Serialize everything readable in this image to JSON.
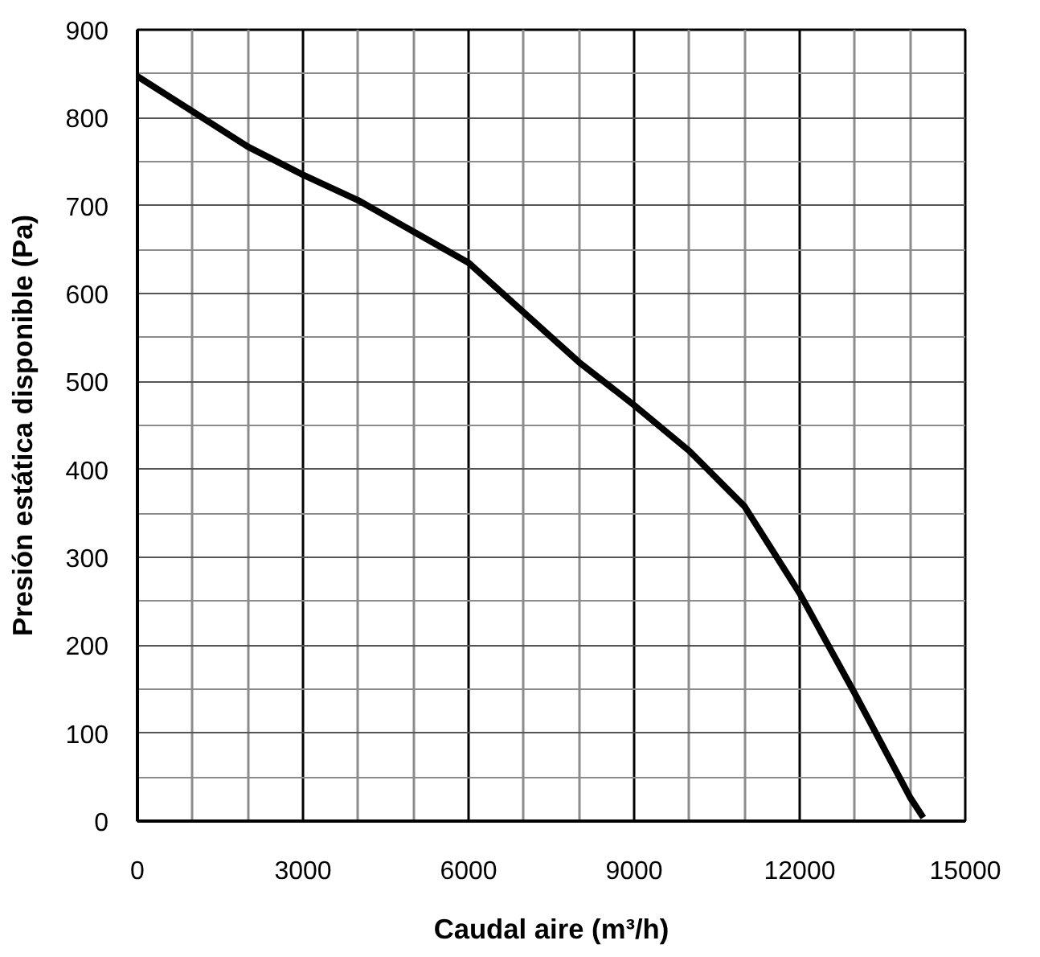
{
  "chart_data": {
    "type": "line",
    "xlabel": "Caudal aire (m³/h)",
    "ylabel": "Presión estática disponible (Pa)",
    "xlim": [
      0,
      15000
    ],
    "xticks": [
      0,
      3000,
      6000,
      9000,
      12000,
      15000
    ],
    "ylim": [
      0,
      900
    ],
    "yticks": [
      0,
      100,
      200,
      300,
      400,
      500,
      600,
      700,
      800,
      900
    ],
    "grid": true,
    "series": [
      {
        "color": "#000000",
        "x": [
          0,
          2000,
          3000,
          4000,
          6000,
          8000,
          9000,
          10000,
          11000,
          12000,
          13000,
          14000,
          14240
        ],
        "values": [
          847,
          767,
          735,
          706,
          635,
          522,
          473,
          421,
          358,
          259,
          145,
          27,
          4
        ]
      }
    ]
  }
}
